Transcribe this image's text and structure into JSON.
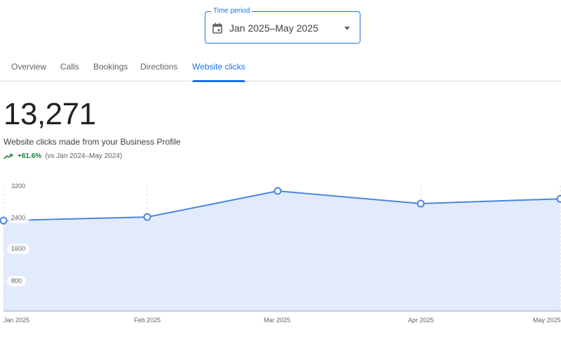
{
  "time_period": {
    "label": "Time period",
    "value": "Jan 2025–May 2025",
    "icon": "calendar-icon"
  },
  "tabs": [
    {
      "label": "Overview",
      "active": false
    },
    {
      "label": "Calls",
      "active": false
    },
    {
      "label": "Bookings",
      "active": false
    },
    {
      "label": "Directions",
      "active": false
    },
    {
      "label": "Website clicks",
      "active": true
    }
  ],
  "summary": {
    "total": "13,271",
    "description": "Website clicks made from your Business Profile",
    "change": "+61.6%",
    "comparison": "(vs Jan 2024–May 2024)",
    "trend_icon": "trending-up-icon"
  },
  "colors": {
    "accent": "#1a73e8",
    "line": "#4a86e0",
    "fill": "#e2ebfb",
    "positive": "#188038"
  },
  "chart_data": {
    "type": "area",
    "title": "Website clicks",
    "xlabel": "",
    "ylabel": "",
    "categories": [
      "Jan 2025",
      "Feb 2025",
      "Mar 2025",
      "Apr 2025",
      "May 2025"
    ],
    "values": [
      2290,
      2380,
      3040,
      2720,
      2841
    ],
    "yticks": [
      "3200",
      "2400",
      "1600",
      "800"
    ],
    "ylim": [
      0,
      3200
    ],
    "grid": "vertical dashed",
    "legend": "none"
  }
}
